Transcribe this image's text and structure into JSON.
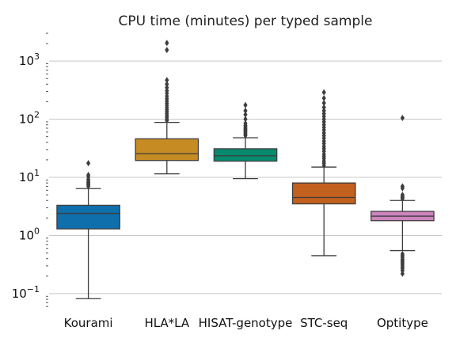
{
  "chart_data": {
    "type": "boxplot",
    "title": "CPU time (minutes) per typed sample",
    "xlabel": "",
    "ylabel": "",
    "y_scale": "log",
    "ylim": [
      0.055,
      3200
    ],
    "grid": "horizontal major gridlines",
    "y_ticks": [
      {
        "value": 0.1,
        "base": "10",
        "exp": "−1"
      },
      {
        "value": 1,
        "base": "10",
        "exp": "0"
      },
      {
        "value": 10,
        "base": "10",
        "exp": "1"
      },
      {
        "value": 100,
        "base": "10",
        "exp": "2"
      },
      {
        "value": 1000,
        "base": "10",
        "exp": "3"
      }
    ],
    "categories": [
      "Kourami",
      "HLA*LA",
      "HISAT-genotype",
      "STC-seq",
      "Optitype"
    ],
    "series": [
      {
        "category": "Kourami",
        "color": "#0f6fad",
        "whisker_low": 0.082,
        "q1": 1.3,
        "median": 2.4,
        "q3": 3.3,
        "whisker_high": 6.4,
        "outliers": [
          7.0,
          7.4,
          7.8,
          8.2,
          8.6,
          9.2,
          10.2,
          11.0,
          17.5
        ]
      },
      {
        "category": "HLA*LA",
        "color": "#c68b22",
        "whisker_low": 11.5,
        "q1": 19.5,
        "median": 25.5,
        "q3": 46.0,
        "whisker_high": 88.0,
        "outliers": [
          95,
          100,
          108,
          116,
          125,
          135,
          145,
          158,
          172,
          188,
          205,
          225,
          250,
          280,
          310,
          350,
          400,
          470,
          1550,
          2050
        ]
      },
      {
        "category": "HISAT-genotype",
        "color": "#078a6d",
        "whisker_low": 9.5,
        "q1": 19.0,
        "median": 23.5,
        "q3": 31.0,
        "whisker_high": 48.0,
        "outliers": [
          52,
          55,
          58,
          61,
          64,
          67,
          70,
          74,
          78,
          85,
          100,
          120,
          140,
          175
        ]
      },
      {
        "category": "STC-seq",
        "color": "#c2601e",
        "whisker_low": 0.45,
        "q1": 3.5,
        "median": 4.5,
        "q3": 8.0,
        "whisker_high": 15.0,
        "outliers": [
          16,
          17.5,
          19,
          21,
          23,
          25,
          28,
          31,
          34,
          38,
          42,
          47,
          52,
          58,
          65,
          72,
          80,
          90,
          100,
          112,
          125,
          140,
          160,
          190,
          230,
          290
        ]
      },
      {
        "category": "Optitype",
        "color": "#cc83be",
        "whisker_low": 0.55,
        "q1": 1.8,
        "median": 2.15,
        "q3": 2.6,
        "whisker_high": 4.0,
        "outliers": [
          0.22,
          0.25,
          0.27,
          0.29,
          0.31,
          0.33,
          0.35,
          0.37,
          0.39,
          0.42,
          0.45,
          0.48,
          4.3,
          4.5,
          4.7,
          5.0,
          6.5,
          7.0,
          105
        ]
      }
    ]
  }
}
